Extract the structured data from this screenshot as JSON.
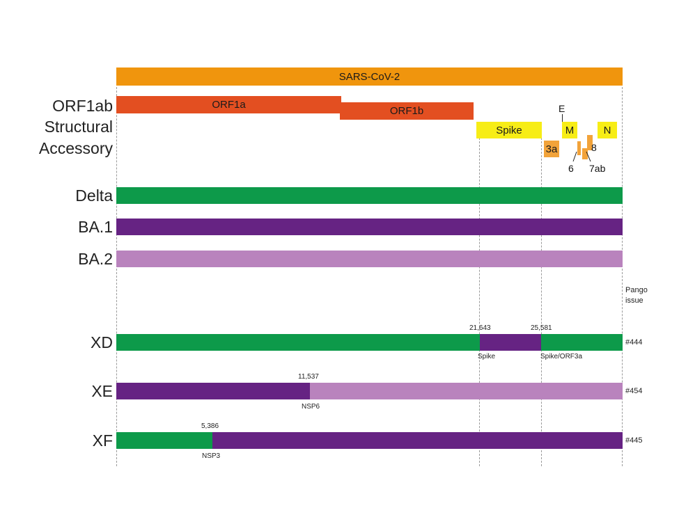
{
  "colors": {
    "genome": "#f0950d",
    "orf": "#e34f21",
    "structural": "#f7ed16",
    "accessory": "#f2a33a",
    "delta": "#0d9a4a",
    "ba1": "#662383",
    "ba2": "#b983bd"
  },
  "genome_label": "SARS-CoV-2",
  "row_labels": {
    "orf1ab": "ORF1ab",
    "structural": "Structural",
    "accessory": "Accessory",
    "delta": "Delta",
    "ba1": "BA.1",
    "ba2": "BA.2",
    "xd": "XD",
    "xe": "XE",
    "xf": "XF"
  },
  "genes": {
    "orf1a": "ORF1a",
    "orf1b": "ORF1b",
    "spike": "Spike",
    "e": "E",
    "m": "M",
    "n": "N",
    "g3a": "3a",
    "g6": "6",
    "g7ab": "7ab",
    "g8": "8"
  },
  "pango_header": "Pango issue",
  "recombinants": {
    "xd": {
      "breakpoints": [
        "21,643",
        "25,581"
      ],
      "regions": [
        "Spike",
        "Spike/ORF3a"
      ],
      "issue": "#444"
    },
    "xe": {
      "breakpoint": "11,537",
      "region": "NSP6",
      "issue": "#454"
    },
    "xf": {
      "breakpoint": "5,386",
      "region": "NSP3",
      "issue": "#445"
    }
  }
}
